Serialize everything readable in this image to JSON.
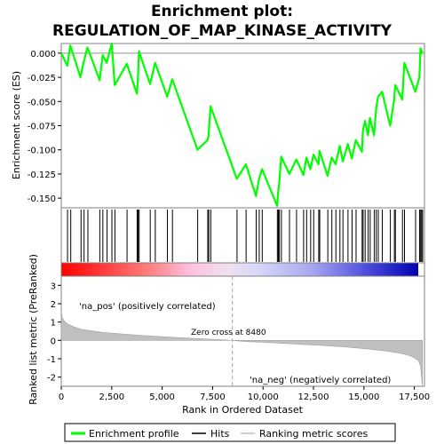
{
  "chart_data": {
    "type": "line",
    "title": "Enrichment plot:",
    "subtitle": "REGULATION_OF_MAP_KINASE_ACTIVITY",
    "xlabel": "Rank in Ordered Dataset",
    "xlim": [
      0,
      18000
    ],
    "x_ticks": [
      "0",
      "2,500",
      "5,000",
      "7,500",
      "10,000",
      "12,500",
      "15,000",
      "17,500"
    ],
    "x_tick_values": [
      0,
      2500,
      5000,
      7500,
      10000,
      12500,
      15000,
      17500
    ],
    "es_panel": {
      "ylabel": "Enrichment score (ES)",
      "ylim": [
        -0.16,
        0.01
      ],
      "y_ticks": [
        "0.000",
        "-0.025",
        "-0.050",
        "-0.075",
        "-0.100",
        "-0.125",
        "-0.150"
      ],
      "y_tick_values": [
        0.0,
        -0.025,
        -0.05,
        -0.075,
        -0.1,
        -0.125,
        -0.15
      ],
      "series": [
        {
          "name": "Enrichment profile",
          "color": "#00ff00",
          "x": [
            0,
            300,
            450,
            950,
            1100,
            1300,
            1900,
            2050,
            2250,
            2500,
            2650,
            3250,
            3750,
            3800,
            3850,
            4400,
            4650,
            5250,
            5500,
            6750,
            7250,
            7300,
            7400,
            8700,
            9150,
            9650,
            9800,
            9950,
            10700,
            10750,
            10800,
            10900,
            11300,
            11650,
            12000,
            12150,
            12350,
            12500,
            12750,
            12800,
            13200,
            13400,
            13600,
            13800,
            13950,
            14200,
            14400,
            14600,
            14900,
            14950,
            15050,
            15200,
            15300,
            15500,
            15600,
            15700,
            15900,
            16300,
            16500,
            16550,
            16900,
            17000,
            17550,
            17750,
            17800,
            17850,
            17900
          ],
          "y": [
            0.0,
            -0.013,
            0.008,
            -0.025,
            -0.01,
            0.006,
            -0.028,
            -0.002,
            -0.01,
            0.01,
            -0.033,
            -0.011,
            -0.042,
            -0.027,
            0.002,
            -0.032,
            -0.01,
            -0.045,
            -0.027,
            -0.1,
            -0.09,
            -0.085,
            -0.055,
            -0.13,
            -0.115,
            -0.148,
            -0.13,
            -0.12,
            -0.158,
            -0.143,
            -0.135,
            -0.107,
            -0.125,
            -0.11,
            -0.126,
            -0.108,
            -0.12,
            -0.105,
            -0.115,
            -0.101,
            -0.127,
            -0.108,
            -0.115,
            -0.096,
            -0.112,
            -0.094,
            -0.109,
            -0.09,
            -0.102,
            -0.08,
            -0.07,
            -0.085,
            -0.067,
            -0.085,
            -0.058,
            -0.045,
            -0.04,
            -0.075,
            -0.048,
            -0.033,
            -0.048,
            -0.01,
            -0.04,
            -0.025,
            0.005,
            0.0,
            0.003
          ]
        }
      ]
    },
    "hits": {
      "name": "Hits",
      "color": "#000000",
      "x": [
        310,
        470,
        980,
        1130,
        1320,
        1910,
        2060,
        2270,
        2510,
        2660,
        3260,
        3760,
        3810,
        3860,
        4410,
        4660,
        5260,
        5510,
        6760,
        7260,
        7310,
        7410,
        8710,
        9160,
        9660,
        9810,
        9960,
        10710,
        10760,
        10810,
        10910,
        11310,
        11660,
        12010,
        12160,
        12360,
        12510,
        12760,
        12810,
        13210,
        13410,
        13610,
        13810,
        13960,
        14210,
        14410,
        14610,
        14910,
        14960,
        15060,
        15210,
        15310,
        15510,
        15610,
        15710,
        15910,
        16310,
        16510,
        16560,
        16910,
        17010,
        17560,
        17760,
        17810,
        17860,
        17910
      ]
    },
    "rank_bar": {
      "label_pos": "'na_pos' (positively correlated)",
      "label_neg": "'na_neg' (negatively correlated)",
      "pos_color": "#ff0000",
      "neg_color": "#0000ff"
    },
    "metric_panel": {
      "ylabel": "Ranked list metric (PreRanked)",
      "ylim": [
        -2.5,
        3.5
      ],
      "y_ticks": [
        "3",
        "2",
        "1",
        "0",
        "-1",
        "-2"
      ],
      "y_tick_values": [
        3,
        2,
        1,
        0,
        -1,
        -2
      ],
      "zero_cross_label": "Zero cross at 8480",
      "zero_cross": 8480,
      "fill_color": "#c0c0c0",
      "x": [
        0,
        50,
        150,
        300,
        600,
        1000,
        2000,
        3000,
        4000,
        5000,
        6000,
        7000,
        8000,
        8480,
        9000,
        10000,
        11000,
        12000,
        13000,
        14000,
        15000,
        15500,
        16000,
        16500,
        17000,
        17300,
        17500,
        17700,
        17800,
        17850,
        17900
      ],
      "values": [
        1.6,
        1.25,
        1.05,
        0.9,
        0.75,
        0.6,
        0.45,
        0.35,
        0.27,
        0.2,
        0.14,
        0.09,
        0.03,
        0.0,
        -0.05,
        -0.1,
        -0.16,
        -0.22,
        -0.28,
        -0.35,
        -0.45,
        -0.5,
        -0.57,
        -0.64,
        -0.75,
        -0.85,
        -0.95,
        -1.1,
        -1.4,
        -1.9,
        -2.5
      ]
    },
    "legend": {
      "placement": "bottom",
      "items": [
        "Enrichment profile",
        "Hits",
        "Ranking metric scores"
      ]
    }
  }
}
